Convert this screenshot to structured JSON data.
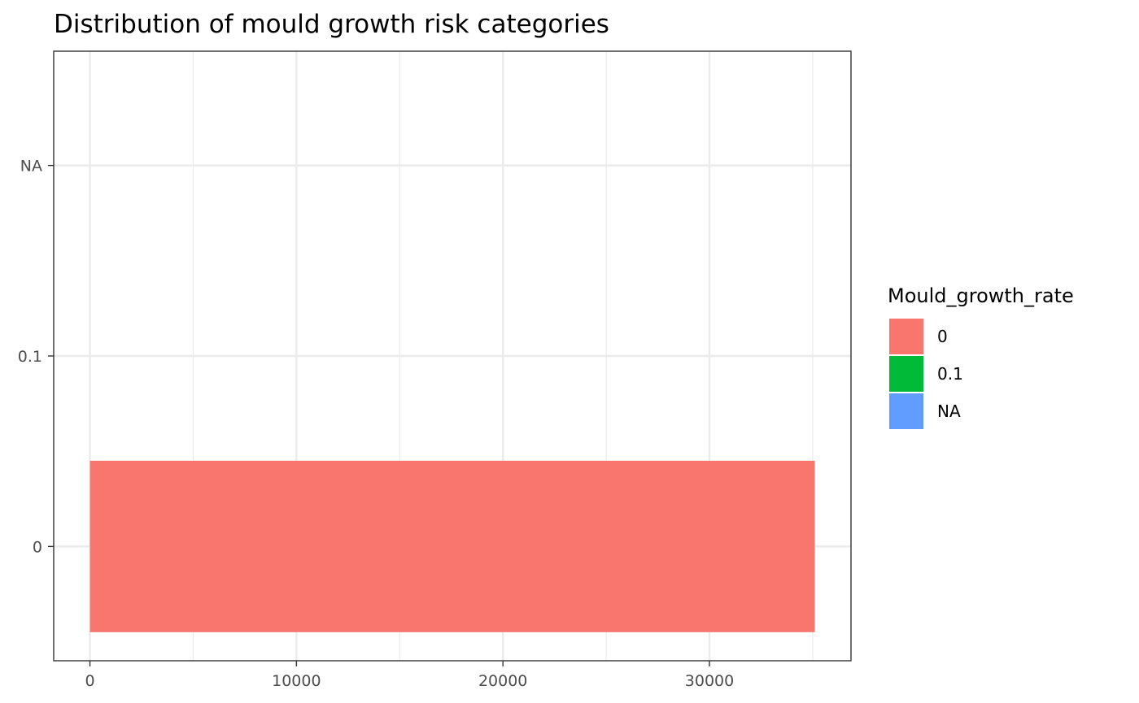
{
  "chart_data": {
    "type": "bar",
    "orientation": "horizontal",
    "title": "Distribution of mould growth risk categories",
    "xlabel": "",
    "ylabel": "",
    "categories": [
      "0",
      "0.1",
      "NA"
    ],
    "values": [
      35100,
      0,
      0
    ],
    "colors": [
      "#F8766D",
      "#00BA38",
      "#619CFF"
    ],
    "xlim": [
      -1755,
      36855
    ],
    "x_ticks": [
      0,
      10000,
      20000,
      30000
    ],
    "x_tick_labels": [
      "0",
      "10000",
      "20000",
      "30000"
    ],
    "grid": true,
    "legend": {
      "title": "Mould_growth_rate",
      "position": "right",
      "entries": [
        {
          "label": "0",
          "color": "#F8766D"
        },
        {
          "label": "0.1",
          "color": "#00BA38"
        },
        {
          "label": "NA",
          "color": "#619CFF"
        }
      ]
    }
  }
}
